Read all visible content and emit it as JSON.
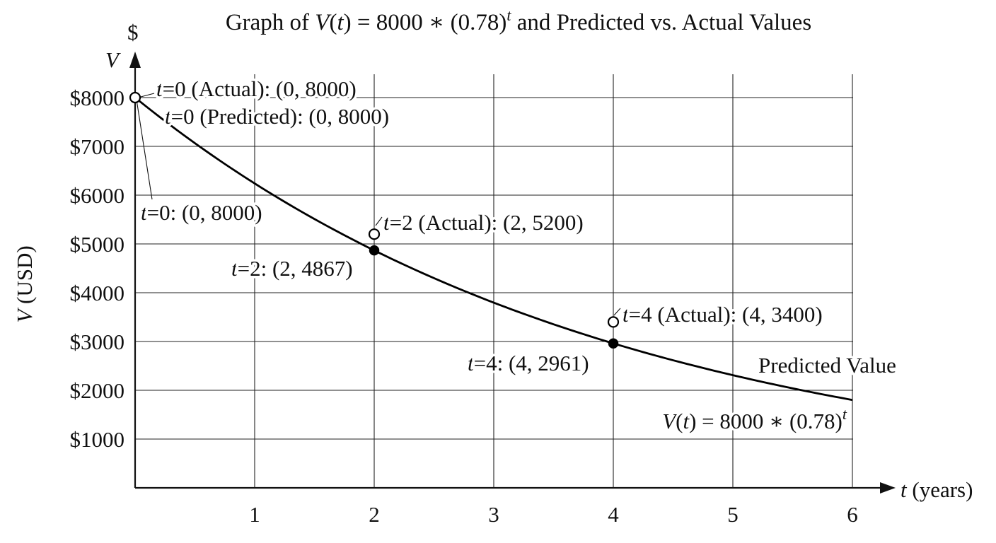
{
  "chart_data": {
    "type": "line",
    "title": {
      "prefix": "Graph of ",
      "func": "V",
      "open": "(",
      "var": "t",
      "close": ")",
      "rest": " = 8000 ∗ (0.78)",
      "exp": "t",
      "suffix": " and Predicted vs. Actual Values"
    },
    "ylabel": {
      "var": "V",
      "rest": " (USD)"
    },
    "y_unit_symbol": "$",
    "y_axis_var": "V",
    "xlabel": {
      "var": "t",
      "rest": " (years)"
    },
    "xlim": [
      0,
      6.3
    ],
    "ylim": [
      0,
      8000
    ],
    "x_ticks": [
      "1",
      "2",
      "3",
      "4",
      "5",
      "6"
    ],
    "y_ticks": [
      "$1000",
      "$2000",
      "$3000",
      "$4000",
      "$5000",
      "$6000",
      "$7000",
      "$8000"
    ],
    "x_tick_values": [
      1,
      2,
      3,
      4,
      5,
      6
    ],
    "y_tick_values": [
      1000,
      2000,
      3000,
      4000,
      5000,
      6000,
      7000,
      8000
    ],
    "grid": true,
    "model": {
      "a": 8000,
      "b": 0.78,
      "t_range": [
        0,
        6
      ]
    },
    "series": [
      {
        "name": "Predicted Value",
        "style": "curve",
        "formula": {
          "func": "V",
          "open": "(",
          "var": "t",
          "close": ")",
          "rest": " = 8000 ∗ (0.78)",
          "exp": "t"
        }
      },
      {
        "style": "filled-points",
        "points": [
          {
            "x": 2,
            "y": 4867,
            "t": "t",
            "rest": "=2: (2, 4867)"
          },
          {
            "x": 4,
            "y": 2961,
            "t": "t",
            "rest": "=4: (4, 2961)"
          }
        ]
      },
      {
        "style": "open-points",
        "points": [
          {
            "x": 0,
            "y": 8000,
            "t": "t",
            "rest": "=0 (Actual): (0, 8000)"
          },
          {
            "x": 2,
            "y": 5200,
            "t": "t",
            "rest": "=2 (Actual): (2, 5200)"
          },
          {
            "x": 4,
            "y": 3400,
            "t": "t",
            "rest": "=4 (Actual): (4, 3400)"
          }
        ]
      }
    ],
    "annotations": [
      {
        "t": "t",
        "rest": "=0 (Predicted): (0, 8000)"
      },
      {
        "t": "t",
        "rest": "=0: (0, 8000)"
      }
    ],
    "colors": {
      "line": "#000000",
      "grid": "#222222",
      "background": "#ffffff"
    }
  }
}
